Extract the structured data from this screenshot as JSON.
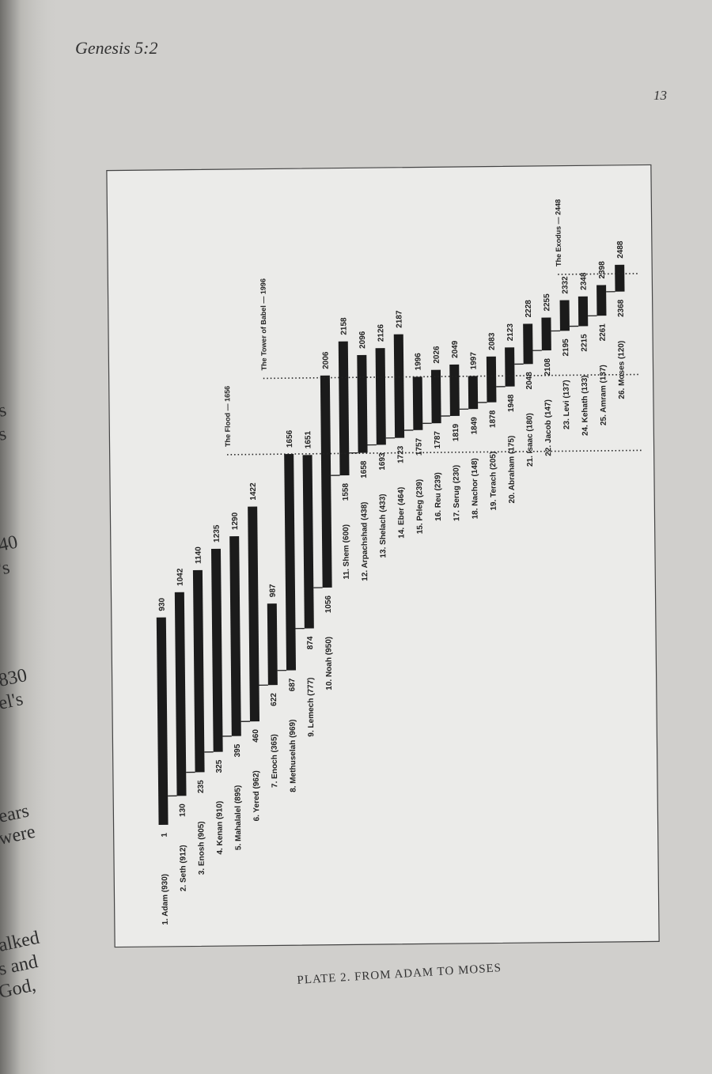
{
  "header": {
    "running_title": "Genesis 5:2",
    "page_number": "13"
  },
  "left_margin_fragments": [
    "s",
    "s",
    "40",
    "'s",
    "830",
    "el's",
    "ears",
    "were",
    "alked",
    "s and",
    "God,"
  ],
  "caption": "PLATE 2.  FROM ADAM TO MOSES",
  "chart_data": {
    "type": "timeline",
    "categories": [
      "1. Adam (930)",
      "2. Seth (912)",
      "3. Enosh (905)",
      "4. Kenan (910)",
      "5. Mahalalel (895)",
      "6. Yered (962)",
      "7. Enoch (365)",
      "8. Methuselah (969)",
      "9. Lemech (777)",
      "10. Noah (950)",
      "11. Shem (600)",
      "12. Arpachshad (438)",
      "13. Shelach (433)",
      "14. Eber (464)",
      "15. Peleg (239)",
      "16. Reu (239)",
      "17. Serug (230)",
      "18. Nachor (148)",
      "19. Terach (205)",
      "20. Abraham (175)",
      "21. Isaac (180)",
      "22. Jacob (147)",
      "23. Levi (137)",
      "24. Kehath (133)",
      "25. Amram (137)",
      "26. Moses (120)"
    ],
    "start": [
      1,
      130,
      235,
      325,
      395,
      460,
      622,
      687,
      874,
      1056,
      1558,
      1658,
      1693,
      1723,
      1757,
      1787,
      1819,
      1849,
      1878,
      1948,
      2048,
      2108,
      2195,
      2215,
      2261,
      2368
    ],
    "end": [
      930,
      1042,
      1140,
      1235,
      1290,
      1422,
      987,
      1656,
      1651,
      2006,
      2158,
      2096,
      2126,
      2187,
      1996,
      2026,
      2049,
      1997,
      2083,
      2123,
      2228,
      2255,
      2332,
      2348,
      2398,
      2488
    ],
    "color": "#1b1b1b",
    "events": [
      {
        "label": "The Flood — 1656",
        "value": 1656
      },
      {
        "label": "The Tower of Babel — 1996",
        "value": 1996
      },
      {
        "label": "The Exodus — 2448",
        "value": 2448
      }
    ]
  }
}
